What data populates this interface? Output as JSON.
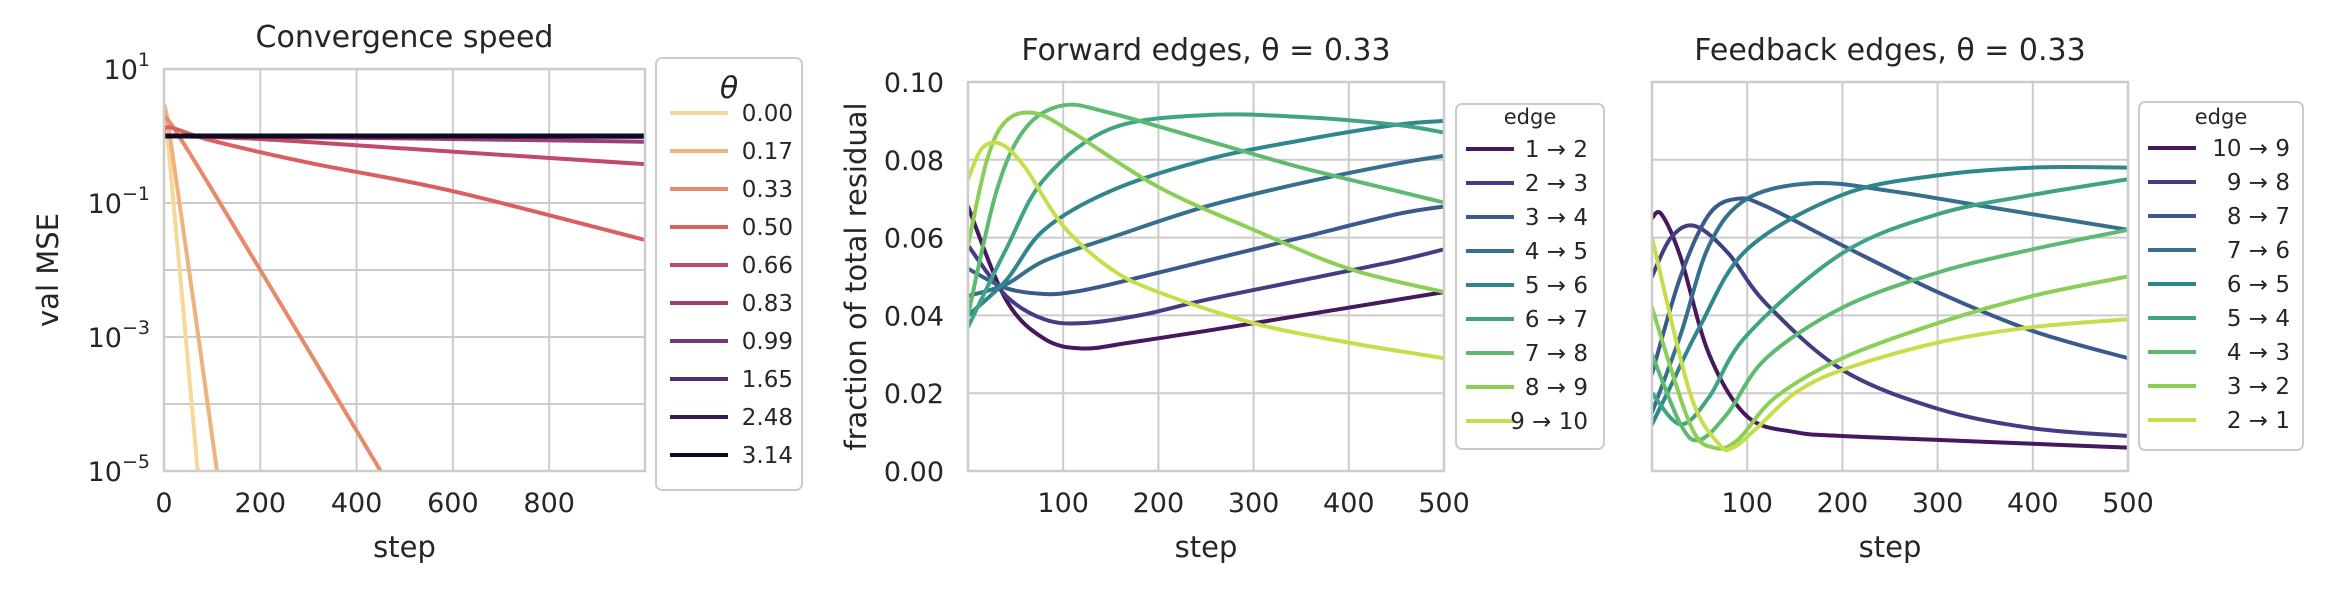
{
  "chart_data": [
    {
      "type": "line",
      "title": "Convergence speed",
      "xlabel": "step",
      "ylabel": "val MSE",
      "yscale": "log",
      "xlim": [
        0,
        999
      ],
      "ylim": [
        1e-05,
        10
      ],
      "xticks": [
        "0",
        "200",
        "400",
        "600",
        "800"
      ],
      "yticks": [
        {
          "base": "10",
          "exp": "1",
          "value": 10
        },
        {
          "base": "10",
          "exp": "−1",
          "value": 0.1
        },
        {
          "base": "10",
          "exp": "−3",
          "value": 0.001
        },
        {
          "base": "10",
          "exp": "−5",
          "value": 1e-05
        }
      ],
      "legend_title": "θ",
      "legend_position": "outside-right",
      "series": [
        {
          "name": "0.00",
          "color": "#f5d99a",
          "x": [
            0,
            6,
            70
          ],
          "y": [
            1.0,
            1.2,
            1e-05
          ]
        },
        {
          "name": "0.17",
          "color": "#eeb27e",
          "x": [
            0,
            10,
            110
          ],
          "y": [
            1.0,
            1.3,
            1e-05
          ]
        },
        {
          "name": "0.33",
          "color": "#e8896a",
          "x": [
            0,
            12,
            200,
            450
          ],
          "y": [
            1.0,
            1.6,
            0.01,
            1e-05
          ]
        },
        {
          "name": "0.50",
          "color": "#d9605f",
          "x": [
            0,
            10,
            100,
            300,
            600,
            999
          ],
          "y": [
            1.0,
            1.35,
            0.85,
            0.4,
            0.15,
            0.028
          ]
        },
        {
          "name": "0.66",
          "color": "#bf4a69",
          "x": [
            0,
            200,
            500,
            999
          ],
          "y": [
            1.0,
            0.9,
            0.65,
            0.38
          ]
        },
        {
          "name": "0.83",
          "color": "#9e3e75",
          "x": [
            0,
            500,
            999
          ],
          "y": [
            1.0,
            0.92,
            0.82
          ]
        },
        {
          "name": "0.99",
          "color": "#7a3479",
          "x": [
            0,
            999
          ],
          "y": [
            1.0,
            0.97
          ]
        },
        {
          "name": "1.65",
          "color": "#572a73",
          "x": [
            0,
            999
          ],
          "y": [
            1.0,
            1.0
          ]
        },
        {
          "name": "2.48",
          "color": "#341b55",
          "x": [
            0,
            999
          ],
          "y": [
            1.0,
            1.0
          ]
        },
        {
          "name": "3.14",
          "color": "#0d0a26",
          "x": [
            0,
            999
          ],
          "y": [
            1.0,
            1.0
          ]
        }
      ]
    },
    {
      "type": "line",
      "title": "Forward edges, ",
      "title_math": "θ = 0.33",
      "xlabel": "step",
      "ylabel": "fraction of total residual",
      "xlim": [
        0,
        500
      ],
      "ylim": [
        0,
        0.1
      ],
      "xticks": [
        "100",
        "200",
        "300",
        "400",
        "500"
      ],
      "yticks": [
        "0.00",
        "0.02",
        "0.04",
        "0.06",
        "0.08",
        "0.10"
      ],
      "legend_title": "edge",
      "legend_position": "outside-right",
      "series": [
        {
          "name": "1 → 2",
          "color": "#46185e",
          "x": [
            0,
            40,
            80,
            120,
            170,
            250,
            350,
            450,
            500
          ],
          "y": [
            0.068,
            0.044,
            0.034,
            0.0315,
            0.033,
            0.036,
            0.04,
            0.044,
            0.046
          ]
        },
        {
          "name": "2 → 3",
          "color": "#433d84",
          "x": [
            0,
            40,
            80,
            120,
            180,
            250,
            350,
            450,
            500
          ],
          "y": [
            0.058,
            0.045,
            0.039,
            0.038,
            0.04,
            0.044,
            0.049,
            0.054,
            0.057
          ]
        },
        {
          "name": "3 → 4",
          "color": "#3a5a8c",
          "x": [
            0,
            40,
            80,
            110,
            150,
            250,
            350,
            450,
            500
          ],
          "y": [
            0.052,
            0.047,
            0.0455,
            0.046,
            0.048,
            0.054,
            0.06,
            0.066,
            0.068
          ]
        },
        {
          "name": "4 → 5",
          "color": "#35708e",
          "x": [
            0,
            40,
            80,
            150,
            250,
            350,
            450,
            500
          ],
          "y": [
            0.045,
            0.048,
            0.054,
            0.06,
            0.068,
            0.074,
            0.079,
            0.081
          ]
        },
        {
          "name": "5 → 6",
          "color": "#2f878c",
          "x": [
            0,
            40,
            80,
            150,
            250,
            350,
            450,
            500
          ],
          "y": [
            0.04,
            0.049,
            0.062,
            0.072,
            0.08,
            0.085,
            0.089,
            0.09
          ]
        },
        {
          "name": "6 → 7",
          "color": "#40a385",
          "x": [
            0,
            40,
            80,
            150,
            250,
            350,
            450,
            500
          ],
          "y": [
            0.037,
            0.057,
            0.075,
            0.088,
            0.0915,
            0.091,
            0.089,
            0.087
          ]
        },
        {
          "name": "7 → 8",
          "color": "#5fba71",
          "x": [
            0,
            30,
            60,
            100,
            150,
            250,
            350,
            450,
            500
          ],
          "y": [
            0.04,
            0.072,
            0.088,
            0.094,
            0.092,
            0.085,
            0.078,
            0.072,
            0.069
          ]
        },
        {
          "name": "8 → 9",
          "color": "#8ccf57",
          "x": [
            0,
            20,
            40,
            70,
            110,
            200,
            300,
            400,
            500
          ],
          "y": [
            0.058,
            0.08,
            0.09,
            0.092,
            0.087,
            0.073,
            0.062,
            0.052,
            0.046
          ]
        },
        {
          "name": "9 → 10",
          "color": "#c7de4c",
          "x": [
            0,
            15,
            35,
            60,
            100,
            150,
            200,
            300,
            400,
            500
          ],
          "y": [
            0.075,
            0.083,
            0.084,
            0.078,
            0.063,
            0.052,
            0.046,
            0.038,
            0.033,
            0.029
          ]
        }
      ]
    },
    {
      "type": "line",
      "title": "Feedback edges, ",
      "title_math": "θ = 0.33",
      "xlabel": "step",
      "ylabel": "",
      "xlim": [
        0,
        500
      ],
      "ylim": [
        0,
        0.1
      ],
      "xticks": [
        "100",
        "200",
        "300",
        "400",
        "500"
      ],
      "legend_title": "edge",
      "legend_position": "outside-right",
      "series": [
        {
          "name": "10 → 9",
          "color": "#46185e",
          "x": [
            0,
            10,
            30,
            60,
            100,
            150,
            200,
            300,
            400,
            500
          ],
          "y": [
            0.065,
            0.066,
            0.055,
            0.03,
            0.014,
            0.01,
            0.009,
            0.008,
            0.007,
            0.006
          ]
        },
        {
          "name": "9 → 8",
          "color": "#433d84",
          "x": [
            0,
            20,
            45,
            80,
            120,
            200,
            300,
            400,
            500
          ],
          "y": [
            0.05,
            0.06,
            0.063,
            0.056,
            0.043,
            0.026,
            0.016,
            0.011,
            0.009
          ]
        },
        {
          "name": "8 → 7",
          "color": "#3a5a8c",
          "x": [
            0,
            30,
            60,
            90,
            120,
            200,
            300,
            400,
            500
          ],
          "y": [
            0.025,
            0.05,
            0.066,
            0.07,
            0.068,
            0.058,
            0.046,
            0.036,
            0.029
          ]
        },
        {
          "name": "7 → 6",
          "color": "#35708e",
          "x": [
            0,
            30,
            60,
            100,
            170,
            250,
            350,
            450,
            500
          ],
          "y": [
            0.015,
            0.035,
            0.058,
            0.07,
            0.074,
            0.072,
            0.068,
            0.064,
            0.062
          ]
        },
        {
          "name": "6 → 5",
          "color": "#2f878c",
          "x": [
            0,
            20,
            50,
            100,
            200,
            300,
            400,
            500
          ],
          "y": [
            0.012,
            0.022,
            0.037,
            0.057,
            0.071,
            0.076,
            0.078,
            0.078
          ]
        },
        {
          "name": "5 → 4",
          "color": "#40a385",
          "x": [
            0,
            30,
            60,
            100,
            200,
            300,
            400,
            500
          ],
          "y": [
            0.02,
            0.012,
            0.019,
            0.035,
            0.056,
            0.066,
            0.071,
            0.075
          ]
        },
        {
          "name": "4 → 3",
          "color": "#5fba71",
          "x": [
            0,
            30,
            50,
            80,
            120,
            200,
            300,
            400,
            500
          ],
          "y": [
            0.03,
            0.012,
            0.008,
            0.015,
            0.029,
            0.042,
            0.051,
            0.057,
            0.062
          ]
        },
        {
          "name": "3 → 2",
          "color": "#8ccf57",
          "x": [
            0,
            40,
            65,
            90,
            130,
            200,
            300,
            400,
            500
          ],
          "y": [
            0.042,
            0.012,
            0.006,
            0.008,
            0.019,
            0.029,
            0.038,
            0.045,
            0.05
          ]
        },
        {
          "name": "2 → 1",
          "color": "#c7de4c",
          "x": [
            0,
            40,
            70,
            85,
            110,
            150,
            200,
            300,
            400,
            500
          ],
          "y": [
            0.06,
            0.02,
            0.007,
            0.006,
            0.011,
            0.02,
            0.026,
            0.033,
            0.037,
            0.039
          ]
        }
      ]
    }
  ]
}
